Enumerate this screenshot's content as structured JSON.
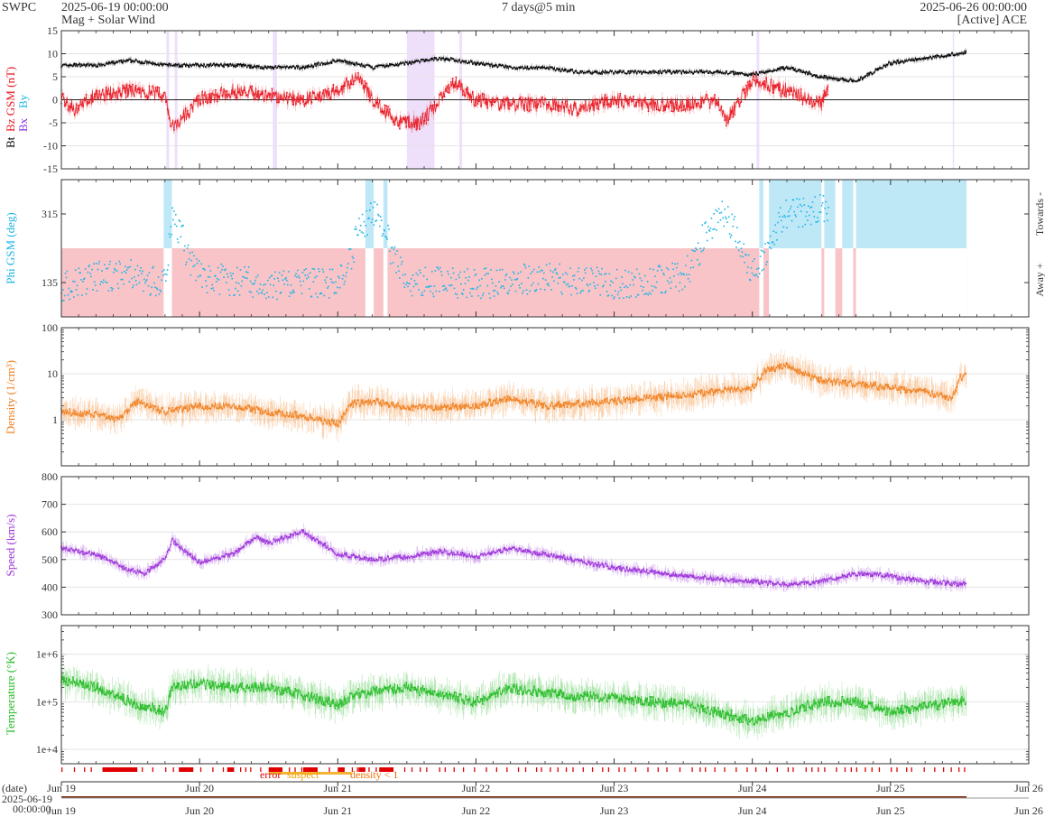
{
  "header": {
    "org": "SWPC",
    "start_time": "2025-06-19 00:00:00",
    "subtitle": "Mag + Solar Wind",
    "span": "7 days@5 min",
    "end_time": "2025-06-26 00:00:00",
    "source": "[Active] ACE"
  },
  "colors": {
    "bt": "#000000",
    "bz": "#e8141e",
    "bx": "#8a2be2",
    "by": "#1eb4e6",
    "phi": "#1eb4e6",
    "phi_towards_fill": "#bfe8f7",
    "phi_away_fill": "#f9c4c8",
    "density": "#f08020",
    "speed": "#9b30d9",
    "temperature": "#22bb22",
    "error": "#e00000",
    "suspect": "#f0a000",
    "density_lt_1": "#f07000"
  },
  "legend_flags": {
    "error": "error",
    "suspect": "suspect",
    "density_lt_1": "density < 1"
  },
  "date_axis": {
    "label": "(date)",
    "start_label": "2025-06-19",
    "start_time_label": "00:00:00"
  },
  "chart_data": [
    {
      "type": "line",
      "panel": "mag",
      "ylabel_parts": [
        "Bt",
        "Bz GSM (nT)",
        "Bx",
        "By"
      ],
      "ylim": [
        -15,
        15
      ],
      "yticks": [
        15,
        10,
        5,
        0,
        -5,
        -10,
        -15
      ],
      "x_unit": "days since 2025-06-19 00:00",
      "series": [
        {
          "name": "Bt",
          "x": [
            0,
            0.25,
            0.5,
            0.75,
            1.0,
            1.25,
            1.5,
            1.75,
            2.0,
            2.25,
            2.5,
            2.75,
            3.0,
            3.25,
            3.5,
            3.75,
            4.0,
            4.25,
            4.5,
            4.75,
            5.0,
            5.25,
            5.5,
            5.75,
            6.0,
            6.25,
            6.5,
            6.55
          ],
          "values": [
            7.5,
            7.5,
            8.5,
            7.5,
            7.5,
            7.5,
            7,
            7,
            8.5,
            7,
            8,
            9,
            8,
            7,
            7,
            6,
            6,
            6,
            6,
            6,
            5.5,
            7,
            5,
            4,
            8,
            9,
            10,
            10.5
          ]
        },
        {
          "name": "Bz",
          "x": [
            0,
            0.1,
            0.25,
            0.5,
            0.75,
            0.8,
            1.0,
            1.25,
            1.5,
            1.75,
            2.0,
            2.15,
            2.25,
            2.45,
            2.6,
            2.85,
            3.0,
            3.25,
            3.5,
            3.75,
            4.0,
            4.25,
            4.5,
            4.75,
            4.8,
            5.0,
            5.25,
            5.5,
            5.55
          ],
          "values": [
            0,
            -2,
            1,
            2,
            1,
            -6,
            0,
            2,
            1,
            0,
            2,
            5,
            0,
            -5,
            -5,
            4,
            0,
            -1,
            -1,
            -2,
            0,
            -1,
            -1,
            0,
            -5,
            4,
            2,
            -1,
            3
          ]
        }
      ],
      "shaded_negative_bz": [
        [
          0.76,
          0.78
        ],
        [
          0.82,
          0.84
        ],
        [
          1.53,
          1.56
        ],
        [
          2.5,
          2.7
        ],
        [
          2.88,
          2.9
        ],
        [
          5.03,
          5.05
        ],
        [
          6.45,
          6.46
        ]
      ]
    },
    {
      "type": "scatter",
      "panel": "phi",
      "ylabel": "Phi GSM (deg)",
      "ytick_labels": [
        "315",
        "135"
      ],
      "right_labels": [
        "Towards -",
        "Away +"
      ],
      "series": [
        {
          "name": "Phi",
          "x": [
            0,
            0.25,
            0.5,
            0.6,
            0.75,
            0.8,
            1.0,
            1.5,
            2.0,
            2.25,
            2.5,
            3.0,
            3.5,
            4.0,
            4.5,
            4.75,
            4.8,
            5.0,
            5.25,
            5.5,
            5.55
          ],
          "values": [
            120,
            150,
            160,
            140,
            135,
            300,
            150,
            130,
            135,
            320,
            140,
            130,
            150,
            130,
            150,
            300,
            310,
            150,
            315,
            330,
            320
          ]
        }
      ],
      "towards_spans": [
        [
          0.74,
          0.8
        ],
        [
          2.2,
          2.26
        ],
        [
          2.33,
          2.36
        ],
        [
          5.05,
          5.08
        ],
        [
          5.12,
          5.5
        ],
        [
          5.52,
          5.6
        ],
        [
          5.65,
          5.73
        ],
        [
          5.75,
          6.55
        ]
      ],
      "away_span": [
        0,
        6.55
      ]
    },
    {
      "type": "line",
      "panel": "density",
      "ylabel": "Density (1/cm³)",
      "yscale": "log",
      "ylim": [
        0.1,
        100
      ],
      "ytick_labels": [
        "100",
        "10",
        "1"
      ],
      "series": [
        {
          "name": "Density",
          "x": [
            0,
            0.25,
            0.4,
            0.55,
            0.75,
            1.0,
            1.25,
            1.5,
            1.75,
            2.0,
            2.1,
            2.25,
            2.5,
            3.0,
            3.25,
            3.5,
            4.0,
            4.5,
            5.0,
            5.1,
            5.25,
            5.5,
            5.75,
            6.0,
            6.25,
            6.45,
            6.5,
            6.55
          ],
          "values": [
            1.5,
            1.3,
            1.0,
            2.5,
            1.5,
            2,
            2,
            1.5,
            1.2,
            0.8,
            2.2,
            2.5,
            1.8,
            2,
            3,
            2,
            2.5,
            3.5,
            5,
            12,
            15,
            7,
            6,
            5,
            4,
            3,
            8,
            10
          ]
        }
      ]
    },
    {
      "type": "line",
      "panel": "speed",
      "ylabel": "Speed (km/s)",
      "ylim": [
        300,
        800
      ],
      "yticks": [
        800,
        700,
        600,
        500,
        400,
        300
      ],
      "series": [
        {
          "name": "Speed",
          "x": [
            0,
            0.1,
            0.25,
            0.5,
            0.6,
            0.75,
            0.8,
            1.0,
            1.25,
            1.4,
            1.5,
            1.75,
            2.0,
            2.25,
            2.5,
            2.75,
            3.0,
            3.25,
            3.5,
            4.0,
            4.5,
            5.0,
            5.25,
            5.5,
            5.75,
            6.0,
            6.25,
            6.55
          ],
          "values": [
            540,
            530,
            520,
            460,
            450,
            500,
            570,
            490,
            520,
            580,
            560,
            600,
            520,
            500,
            510,
            530,
            510,
            540,
            520,
            470,
            440,
            420,
            410,
            420,
            450,
            440,
            420,
            410
          ]
        }
      ]
    },
    {
      "type": "line",
      "panel": "temperature",
      "ylabel": "Temperature (°K)",
      "yscale": "log",
      "ylim": [
        5000,
        4000000
      ],
      "ytick_labels": [
        "1e+6",
        "1e+5",
        "1e+4"
      ],
      "series": [
        {
          "name": "Temperature",
          "x": [
            0,
            0.25,
            0.5,
            0.75,
            0.8,
            1.0,
            1.25,
            1.5,
            2.0,
            2.15,
            2.5,
            3.0,
            3.25,
            3.5,
            4.0,
            4.25,
            4.5,
            5.0,
            5.25,
            5.5,
            5.75,
            6.0,
            6.25,
            6.5,
            6.55
          ],
          "values": [
            300000,
            200000,
            100000,
            60000,
            200000,
            250000,
            200000,
            200000,
            90000,
            150000,
            200000,
            100000,
            200000,
            150000,
            120000,
            100000,
            90000,
            40000,
            60000,
            100000,
            100000,
            60000,
            80000,
            100000,
            100000
          ]
        }
      ]
    },
    {
      "type": "table",
      "panel": "flags",
      "error_spans": [
        [
          0.3,
          0.55
        ],
        [
          0.85,
          0.95
        ],
        [
          1.2,
          1.25
        ],
        [
          1.5,
          1.6
        ],
        [
          1.75,
          1.85
        ],
        [
          2.0,
          2.05
        ],
        [
          2.15,
          2.2
        ],
        [
          2.3,
          2.4
        ]
      ],
      "suspect_spans": [
        [
          1.5,
          2.1
        ]
      ],
      "x_tick_labels": [
        "Jun 19",
        "Jun 20",
        "Jun 21",
        "Jun 22",
        "Jun 23",
        "Jun 24",
        "Jun 25",
        "Jun 26"
      ]
    }
  ]
}
